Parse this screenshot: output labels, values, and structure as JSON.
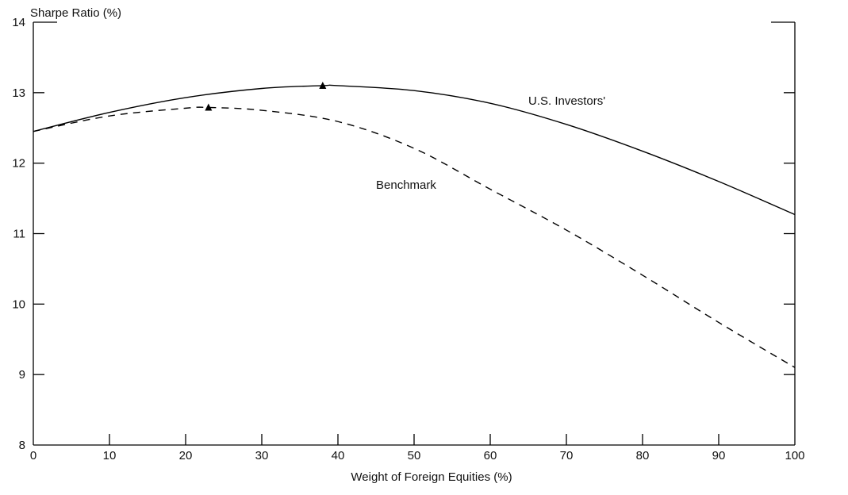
{
  "chart_data": {
    "type": "line",
    "title": "",
    "xlabel": "Weight of Foreign Equities (%)",
    "ylabel": "Sharpe Ratio (%)",
    "xlim": [
      0,
      100
    ],
    "ylim": [
      8,
      14
    ],
    "xticks": [
      0,
      10,
      20,
      30,
      40,
      50,
      60,
      70,
      80,
      90,
      100
    ],
    "yticks": [
      8,
      9,
      10,
      11,
      12,
      13,
      14
    ],
    "grid": false,
    "legend": "none (inline labels)",
    "series": [
      {
        "name": "U.S. Investors'",
        "style": "solid",
        "color": "#000000",
        "x": [
          0,
          10,
          20,
          30,
          38,
          40,
          50,
          60,
          70,
          80,
          90,
          100
        ],
        "y": [
          12.45,
          12.72,
          12.93,
          13.06,
          13.1,
          13.1,
          13.03,
          12.85,
          12.55,
          12.17,
          11.74,
          11.27
        ],
        "marker": {
          "x": 38,
          "y": 13.1,
          "shape": "triangle"
        }
      },
      {
        "name": "Benchmark",
        "style": "dashed",
        "color": "#000000",
        "x": [
          0,
          10,
          20,
          23,
          30,
          40,
          50,
          60,
          70,
          80,
          90,
          100
        ],
        "y": [
          12.45,
          12.67,
          12.78,
          12.79,
          12.75,
          12.59,
          12.21,
          11.63,
          11.05,
          10.41,
          9.74,
          9.1
        ],
        "marker": {
          "x": 23,
          "y": 12.79,
          "shape": "triangle"
        }
      }
    ]
  }
}
